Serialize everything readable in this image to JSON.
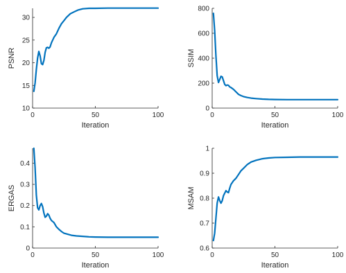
{
  "chart_data": [
    {
      "type": "line",
      "xlabel": "Iteration",
      "ylabel": "PSNR",
      "xlim": [
        0,
        100
      ],
      "ylim": [
        10,
        32
      ],
      "xticks": [
        0,
        50,
        100
      ],
      "yticks": [
        10,
        15,
        20,
        25,
        30
      ],
      "color": "#0072bd",
      "series": [
        {
          "x": [
            1,
            2,
            3,
            4,
            5,
            6,
            7,
            8,
            9,
            10,
            11,
            12,
            13,
            14,
            15,
            17,
            19,
            21,
            23,
            25,
            27,
            30,
            33,
            36,
            40,
            45,
            50,
            60,
            70,
            80,
            90,
            100
          ],
          "y": [
            13.7,
            15.5,
            18.5,
            21.0,
            22.5,
            21.5,
            19.8,
            19.6,
            20.5,
            22.3,
            23.3,
            23.4,
            23.2,
            23.5,
            24.4,
            25.6,
            26.4,
            27.6,
            28.6,
            29.3,
            30.0,
            30.8,
            31.2,
            31.6,
            31.9,
            32.0,
            32.0,
            32.05,
            32.05,
            32.05,
            32.05,
            32.05
          ]
        }
      ]
    },
    {
      "type": "line",
      "xlabel": "Iteration",
      "ylabel": "SSIM",
      "xlim": [
        0,
        100
      ],
      "ylim": [
        0,
        800
      ],
      "xticks": [
        0,
        50,
        100
      ],
      "yticks": [
        0,
        200,
        400,
        600,
        800
      ],
      "color": "#0072bd",
      "series": [
        {
          "x": [
            1,
            2,
            3,
            4,
            5,
            6,
            7,
            8,
            9,
            10,
            11,
            12,
            13,
            14,
            15,
            17,
            19,
            21,
            23,
            25,
            28,
            31,
            35,
            40,
            45,
            50,
            60,
            70,
            80,
            90,
            100
          ],
          "y": [
            760,
            620,
            420,
            260,
            205,
            230,
            255,
            250,
            220,
            190,
            180,
            185,
            182,
            170,
            165,
            150,
            130,
            110,
            100,
            92,
            85,
            80,
            76,
            72,
            70,
            69,
            68,
            68,
            68,
            68,
            68
          ]
        }
      ]
    },
    {
      "type": "line",
      "xlabel": "Iteration",
      "ylabel": "ERGAS",
      "xlim": [
        0,
        100
      ],
      "ylim": [
        0,
        0.47
      ],
      "xticks": [
        0,
        50,
        100
      ],
      "yticks": [
        0,
        0.1,
        0.2,
        0.3,
        0.4
      ],
      "color": "#0072bd",
      "series": [
        {
          "x": [
            1,
            2,
            3,
            4,
            5,
            6,
            7,
            8,
            9,
            10,
            11,
            12,
            13,
            14,
            15,
            17,
            19,
            21,
            23,
            25,
            28,
            31,
            35,
            40,
            45,
            50,
            60,
            70,
            80,
            90,
            100
          ],
          "y": [
            0.47,
            0.38,
            0.25,
            0.19,
            0.18,
            0.2,
            0.21,
            0.195,
            0.165,
            0.145,
            0.15,
            0.162,
            0.155,
            0.14,
            0.13,
            0.12,
            0.1,
            0.088,
            0.078,
            0.07,
            0.065,
            0.06,
            0.057,
            0.055,
            0.053,
            0.052,
            0.051,
            0.051,
            0.051,
            0.051,
            0.051
          ]
        }
      ]
    },
    {
      "type": "line",
      "xlabel": "Iteration",
      "ylabel": "MSAM",
      "xlim": [
        0,
        100
      ],
      "ylim": [
        0.6,
        1.0
      ],
      "xticks": [
        0,
        50,
        100
      ],
      "yticks": [
        0.6,
        0.7,
        0.8,
        0.9,
        1.0
      ],
      "ytick_labels": [
        "0.6",
        "0.7",
        "0.8",
        "0.9",
        "1"
      ],
      "color": "#0072bd",
      "series": [
        {
          "x": [
            1,
            2,
            3,
            4,
            5,
            6,
            7,
            8,
            9,
            10,
            11,
            12,
            13,
            14,
            15,
            17,
            19,
            21,
            23,
            25,
            28,
            31,
            35,
            40,
            45,
            50,
            60,
            70,
            80,
            90,
            100
          ],
          "y": [
            0.63,
            0.66,
            0.72,
            0.78,
            0.805,
            0.79,
            0.78,
            0.79,
            0.81,
            0.82,
            0.83,
            0.825,
            0.822,
            0.84,
            0.855,
            0.87,
            0.88,
            0.895,
            0.91,
            0.92,
            0.935,
            0.945,
            0.952,
            0.958,
            0.961,
            0.963,
            0.964,
            0.965,
            0.965,
            0.965,
            0.965
          ]
        }
      ]
    }
  ]
}
